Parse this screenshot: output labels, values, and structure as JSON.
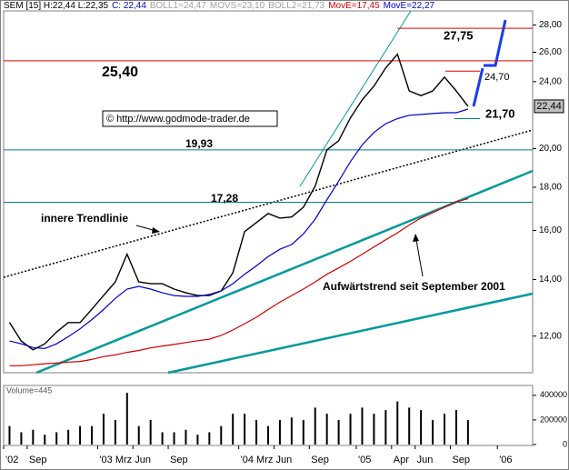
{
  "chart_data": [
    {
      "type": "line",
      "header": [
        {
          "text": "SEM [15] H:22,44 L:22,35",
          "color": "#000000"
        },
        {
          "text": "C: 22,44",
          "color": "#0000cc"
        },
        {
          "text": "BOLL1=24,47",
          "color": "#a0a0a0"
        },
        {
          "text": "MOVS=23,10",
          "color": "#a0a0a0"
        },
        {
          "text": "BOLL2=21,73",
          "color": "#a0a0a0"
        },
        {
          "text": "MovE=17,45",
          "color": "#d00000"
        },
        {
          "text": "MovE=22,27",
          "color": "#0000cc"
        }
      ],
      "categories": [
        "'02",
        null,
        "Sep",
        null,
        null,
        null,
        null,
        null,
        "'03 Mrz",
        null,
        null,
        "Jun",
        null,
        null,
        "Sep",
        null,
        null,
        null,
        null,
        null,
        "'04 Mrz",
        null,
        null,
        "Jun",
        null,
        null,
        "Sep",
        null,
        null,
        null,
        "'05",
        null,
        null,
        "Apr",
        null,
        "Jun",
        null,
        null,
        "Sep",
        null,
        null,
        null,
        "'06",
        null,
        null
      ],
      "series": [
        {
          "color": "#000000",
          "values": [
            12.45,
            11.84,
            11.56,
            11.75,
            12.13,
            12.45,
            12.45,
            12.91,
            13.4,
            13.91,
            15.0,
            13.91,
            13.84,
            13.84,
            13.64,
            13.5,
            13.4,
            13.4,
            13.57,
            14.26,
            15.95,
            16.35,
            16.76,
            16.55,
            16.6,
            17.05,
            18.05,
            19.93,
            20.43,
            21.74,
            22.84,
            23.71,
            24.91,
            25.86,
            23.4,
            23.1,
            23.4,
            24.3,
            23.4,
            22.44,
            null,
            null,
            null,
            null,
            null
          ]
        },
        {
          "color": "#0000cc",
          "values": [
            11.84,
            11.75,
            11.63,
            11.6,
            11.75,
            11.98,
            12.24,
            12.55,
            12.9,
            13.3,
            13.64,
            13.74,
            13.64,
            13.5,
            13.4,
            13.37,
            13.37,
            13.44,
            13.57,
            13.84,
            14.2,
            14.53,
            14.9,
            15.2,
            15.4,
            15.85,
            16.5,
            17.4,
            18.3,
            19.3,
            20.2,
            20.9,
            21.4,
            21.7,
            21.9,
            21.95,
            22.0,
            22.05,
            22.05,
            22.27,
            null,
            null,
            null,
            null,
            null
          ]
        },
        {
          "color": "#d00000",
          "values": [
            11.07,
            11.07,
            11.1,
            11.13,
            11.15,
            11.18,
            11.2,
            11.26,
            11.35,
            11.4,
            11.48,
            11.54,
            11.62,
            11.68,
            11.73,
            11.79,
            11.85,
            11.9,
            12.02,
            12.2,
            12.41,
            12.63,
            12.9,
            13.16,
            13.4,
            13.64,
            13.91,
            14.2,
            14.45,
            14.71,
            15.0,
            15.3,
            15.6,
            15.9,
            16.24,
            16.55,
            16.8,
            17.05,
            17.3,
            17.45,
            null,
            null,
            null,
            null,
            null
          ]
        }
      ],
      "log_scale": true,
      "ylim": [
        10.86,
        29.1
      ],
      "yticks": [
        {
          "value": 12,
          "label": "12,00"
        },
        {
          "value": 14,
          "label": "14,00"
        },
        {
          "value": 16,
          "label": "16,00"
        },
        {
          "value": 18,
          "label": "18,00"
        },
        {
          "value": 20,
          "label": "20,00"
        },
        {
          "value": 24,
          "label": "24,00"
        },
        {
          "value": 26,
          "label": "26,00"
        },
        {
          "value": 28,
          "label": "28,00"
        }
      ],
      "current": {
        "value": 22.44,
        "label": "22,44"
      },
      "levels": [
        {
          "value": 27.75,
          "label": "27,75",
          "color": "#e00000"
        },
        {
          "value": 25.4,
          "label": "25,40",
          "color": "#e00000"
        },
        {
          "value": 24.7,
          "label": "24,70",
          "color": "#e00000"
        },
        {
          "value": 21.7,
          "label": "21,70",
          "color": "#008080"
        },
        {
          "value": 19.93,
          "label": "19,93",
          "color": "#008080"
        },
        {
          "value": 17.28,
          "label": "17,28",
          "color": "#008080"
        }
      ],
      "annotations": [
        "innere Trendlinie",
        "Aufwärtstrend seit September 2001",
        "© http://www.godmode-trader.de"
      ]
    },
    {
      "type": "bar",
      "title": "Volume=445",
      "color": "#000000",
      "values": [
        150000,
        100000,
        120000,
        80000,
        100000,
        120000,
        150000,
        150000,
        250000,
        200000,
        420000,
        150000,
        200000,
        100000,
        100000,
        120000,
        80000,
        100000,
        150000,
        250000,
        250000,
        200000,
        150000,
        200000,
        220000,
        200000,
        300000,
        250000,
        200000,
        250000,
        300000,
        250000,
        280000,
        350000,
        300000,
        280000,
        200000,
        250000,
        280000,
        200000,
        null,
        null,
        null,
        null,
        null
      ],
      "ylim": [
        0,
        480000
      ],
      "yticks": [
        0,
        200000,
        400000
      ]
    }
  ]
}
